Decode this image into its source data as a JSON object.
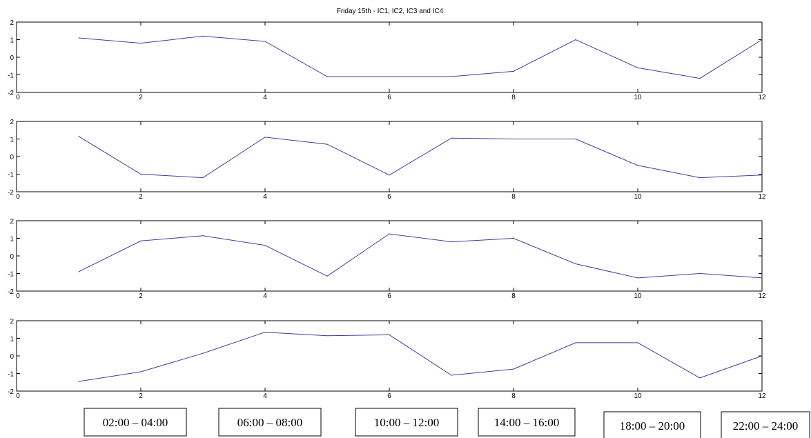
{
  "chart_data": {
    "type": "line",
    "title": "Friday 15th - IC1, IC2, IC3 and IC4",
    "line_color": "#3c3c9c",
    "grid": false,
    "xlim": [
      0,
      12
    ],
    "ylim": [
      -2,
      2
    ],
    "xticks": [
      "0",
      "2",
      "4",
      "6",
      "8",
      "10",
      "12"
    ],
    "yticks": [
      "2",
      "1",
      "0",
      "-1",
      "-2"
    ],
    "x": [
      1,
      2,
      3,
      4,
      5,
      6,
      7,
      8,
      9,
      10,
      11,
      12
    ],
    "panels": [
      {
        "values": [
          1.1,
          0.8,
          1.2,
          0.9,
          -1.1,
          -1.1,
          -1.1,
          -0.8,
          1.0,
          -0.6,
          -1.2,
          1.0
        ]
      },
      {
        "values": [
          1.15,
          -1.0,
          -1.2,
          1.1,
          0.7,
          -1.05,
          1.05,
          1.0,
          1.0,
          -0.5,
          -1.2,
          -1.05
        ]
      },
      {
        "values": [
          -0.9,
          0.85,
          1.15,
          0.6,
          -1.15,
          1.25,
          0.8,
          1.0,
          -0.45,
          -1.25,
          -1.0,
          -1.25
        ]
      },
      {
        "values": [
          -1.45,
          -0.9,
          0.15,
          1.35,
          1.15,
          1.2,
          -1.1,
          -0.75,
          0.75,
          0.75,
          -1.25,
          0.0
        ]
      }
    ],
    "annotations": [
      "02:00 – 04:00",
      "06:00 – 08:00",
      "10:00 – 12:00",
      "14:00 – 16:00",
      "18:00 – 20:00",
      "22:00 – 24:00"
    ]
  }
}
